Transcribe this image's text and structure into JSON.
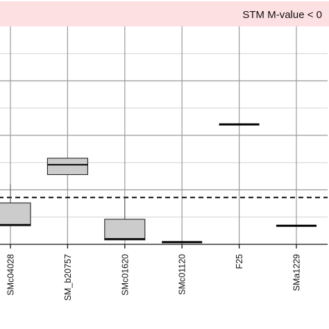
{
  "colors": {
    "strip_fill": "#fde0e2",
    "grid_major": "#999999",
    "grid_minor": "#d2d2d2",
    "axis": "#111111",
    "box_fill": "#cccccc",
    "box_stroke": "#222222",
    "reference_line": "#000000"
  },
  "chart_data": {
    "type": "box",
    "facet_label": "STM M-value < 0",
    "categories": [
      "SMc04028",
      "SM_b20757",
      "SMc01620",
      "SMc01120",
      "F25",
      "SMa1229"
    ],
    "y_axis": {
      "ylim": [
        0,
        2.0
      ],
      "major_ticks": [
        0,
        0.5,
        1.0,
        1.5
      ],
      "tick_labels_shown": false
    },
    "boxes": [
      {
        "category": "SMc04028",
        "q1": 0.17,
        "median": 0.18,
        "q3": 0.38,
        "whisker_low": 0.17,
        "whisker_high": 0.55
      },
      {
        "category": "SM_b20757",
        "q1": 0.64,
        "median": 0.73,
        "q3": 0.79,
        "whisker_low": 0.64,
        "whisker_high": 0.79
      },
      {
        "category": "SMc01620",
        "q1": 0.04,
        "median": 0.05,
        "q3": 0.23,
        "whisker_low": 0.04,
        "whisker_high": 0.43
      },
      {
        "category": "SMc01120",
        "q1": 0.02,
        "median": 0.02,
        "q3": 0.02,
        "whisker_low": 0.02,
        "whisker_high": 0.02
      },
      {
        "category": "F25",
        "q1": 1.1,
        "median": 1.1,
        "q3": 1.1,
        "whisker_low": 1.1,
        "whisker_high": 1.1
      },
      {
        "category": "SMa1229",
        "q1": 0.17,
        "median": 0.17,
        "q3": 0.17,
        "whisker_low": 0.17,
        "whisker_high": 0.17
      }
    ],
    "reference_line": {
      "y": 0.43,
      "style": "dashed"
    },
    "grid": true,
    "legend": false
  }
}
